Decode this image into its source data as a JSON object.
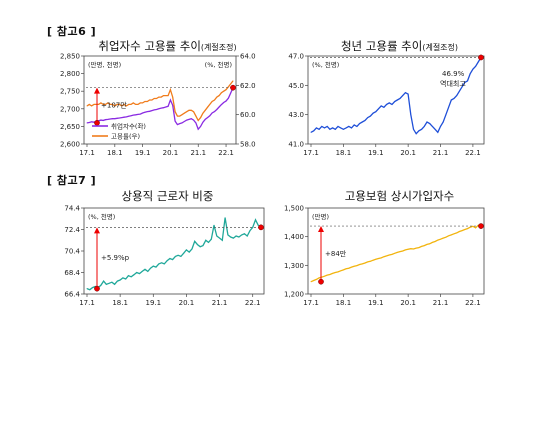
{
  "section_labels": {
    "ref6": "[ 참고6 ]",
    "ref7": "[ 참고7 ]"
  },
  "chart_data": [
    {
      "type": "line",
      "title": "취업자수 고용률 추이",
      "title_note": "(계절조정)",
      "xticks": [
        "17.1",
        "18.1",
        "19.1",
        "20.1",
        "21.1",
        "22.1"
      ],
      "y_left": {
        "ticks": [
          2600,
          2650,
          2700,
          2750,
          2800,
          2850
        ],
        "ylim": [
          2600,
          2850
        ],
        "unit_label": "(만명, 천명)"
      },
      "y_right": {
        "ticks": [
          58.0,
          60.0,
          62.0,
          64.0
        ],
        "ylim": [
          58,
          64
        ],
        "unit_label": "(%, 천명)"
      },
      "legend": [
        "취업자수(좌)",
        "고용률(우)"
      ],
      "annotation": "+107만",
      "series": [
        {
          "name": "취업자수(좌)",
          "color": "#8a2be2",
          "axis": "left",
          "values": [
            2660,
            2661,
            2663,
            2662,
            2665,
            2666,
            2668,
            2667,
            2669,
            2670,
            2671,
            2672,
            2672,
            2673,
            2674,
            2675,
            2676,
            2677,
            2679,
            2680,
            2682,
            2683,
            2684,
            2685,
            2688,
            2690,
            2692,
            2693,
            2695,
            2697,
            2698,
            2700,
            2702,
            2703,
            2705,
            2707,
            2725,
            2710,
            2665,
            2655,
            2658,
            2660,
            2664,
            2668,
            2670,
            2672,
            2668,
            2660,
            2642,
            2650,
            2662,
            2670,
            2675,
            2680,
            2688,
            2692,
            2698,
            2705,
            2712,
            2718,
            2722,
            2730,
            2745,
            2760
          ]
        },
        {
          "name": "고용률(우)",
          "color": "#f07c1c",
          "axis": "right",
          "values": [
            60.6,
            60.7,
            60.6,
            60.7,
            60.7,
            60.7,
            60.8,
            60.7,
            60.7,
            60.8,
            60.7,
            60.7,
            60.6,
            60.7,
            60.7,
            60.6,
            60.7,
            60.6,
            60.7,
            60.7,
            60.8,
            60.7,
            60.7,
            60.8,
            60.8,
            60.9,
            60.9,
            61.0,
            61.0,
            61.1,
            61.1,
            61.2,
            61.2,
            61.3,
            61.3,
            61.3,
            61.7,
            61.2,
            60.2,
            59.9,
            59.9,
            60.0,
            60.1,
            60.2,
            60.3,
            60.3,
            60.2,
            59.9,
            59.6,
            59.8,
            60.1,
            60.3,
            60.5,
            60.7,
            60.9,
            61.0,
            61.2,
            61.3,
            61.5,
            61.6,
            61.7,
            61.9,
            62.1,
            62.3
          ]
        }
      ]
    },
    {
      "type": "line",
      "title": "청년 고용률 추이",
      "title_note": "(계절조정)",
      "xticks": [
        "17.1",
        "18.1",
        "19.1",
        "20.1",
        "21.1",
        "22.1"
      ],
      "y_left": {
        "ticks": [
          41.0,
          43.0,
          45.0,
          47.0
        ],
        "ylim": [
          41,
          47
        ],
        "unit_label": "(%, 천명)"
      },
      "annotation": "46.9% 역대최고",
      "series": [
        {
          "name": "청년 고용률",
          "color": "#1f4fd8",
          "axis": "left",
          "values": [
            41.8,
            41.9,
            42.1,
            42.0,
            42.2,
            42.1,
            42.2,
            42.0,
            42.1,
            42.0,
            42.2,
            42.1,
            42.0,
            42.1,
            42.2,
            42.1,
            42.3,
            42.2,
            42.4,
            42.5,
            42.6,
            42.8,
            42.9,
            43.1,
            43.2,
            43.4,
            43.6,
            43.5,
            43.7,
            43.8,
            43.7,
            43.9,
            44.0,
            44.1,
            44.3,
            44.5,
            44.4,
            43.0,
            42.0,
            41.7,
            41.9,
            42.0,
            42.2,
            42.5,
            42.4,
            42.2,
            42.0,
            41.8,
            42.2,
            42.5,
            43.0,
            43.5,
            44.0,
            44.1,
            44.3,
            44.6,
            44.9,
            45.2,
            45.3,
            45.8,
            46.1,
            46.3,
            46.6,
            46.9
          ]
        }
      ]
    },
    {
      "type": "line",
      "title": "상용직 근로자 비중",
      "xticks": [
        "17.1",
        "18.1",
        "19.1",
        "20.1",
        "21.1",
        "22.1"
      ],
      "y_left": {
        "ticks": [
          66.4,
          68.4,
          70.4,
          72.4,
          74.4
        ],
        "ylim": [
          66.4,
          74.4
        ],
        "unit_label": "(%, 천명)"
      },
      "annotation": "+5.9%p",
      "series": [
        {
          "name": "상용직 근로자 비중",
          "color": "#20a89a",
          "axis": "left",
          "values": [
            66.9,
            66.8,
            67.0,
            67.1,
            67.0,
            67.2,
            67.6,
            67.3,
            67.4,
            67.5,
            67.3,
            67.6,
            67.7,
            67.9,
            67.8,
            68.1,
            68.0,
            68.2,
            68.4,
            68.3,
            68.5,
            68.7,
            68.5,
            68.8,
            69.0,
            68.9,
            69.2,
            69.3,
            69.2,
            69.5,
            69.7,
            69.6,
            69.9,
            70.0,
            69.9,
            70.2,
            70.5,
            70.3,
            70.6,
            71.3,
            71.0,
            70.8,
            70.9,
            71.4,
            71.2,
            71.5,
            72.8,
            71.8,
            71.6,
            71.4,
            73.5,
            71.9,
            71.7,
            71.6,
            71.8,
            71.7,
            71.9,
            72.0,
            71.8,
            72.3,
            72.6,
            73.3,
            72.8,
            72.6
          ]
        }
      ]
    },
    {
      "type": "line",
      "title": "고용보험 상시가입자수",
      "xticks": [
        "17.1",
        "18.1",
        "19.1",
        "20.1",
        "21.1",
        "22.1"
      ],
      "y_left": {
        "ticks": [
          1200,
          1300,
          1400,
          1500
        ],
        "ylim": [
          1200,
          1500
        ],
        "unit_label": "(만명)"
      },
      "annotation": "+84만",
      "series": [
        {
          "name": "고용보험 상시가입자수",
          "color": "#f2b40e",
          "axis": "left",
          "values": [
            1243,
            1247,
            1251,
            1256,
            1259,
            1262,
            1266,
            1268,
            1272,
            1275,
            1277,
            1281,
            1284,
            1288,
            1290,
            1294,
            1297,
            1299,
            1303,
            1305,
            1308,
            1312,
            1314,
            1318,
            1321,
            1324,
            1326,
            1330,
            1333,
            1336,
            1338,
            1342,
            1345,
            1348,
            1350,
            1354,
            1356,
            1358,
            1357,
            1360,
            1362,
            1366,
            1369,
            1373,
            1375,
            1380,
            1383,
            1388,
            1391,
            1395,
            1398,
            1403,
            1406,
            1410,
            1413,
            1418,
            1421,
            1425,
            1428,
            1433,
            1436,
            1431,
            1440,
            1437
          ]
        }
      ]
    }
  ]
}
